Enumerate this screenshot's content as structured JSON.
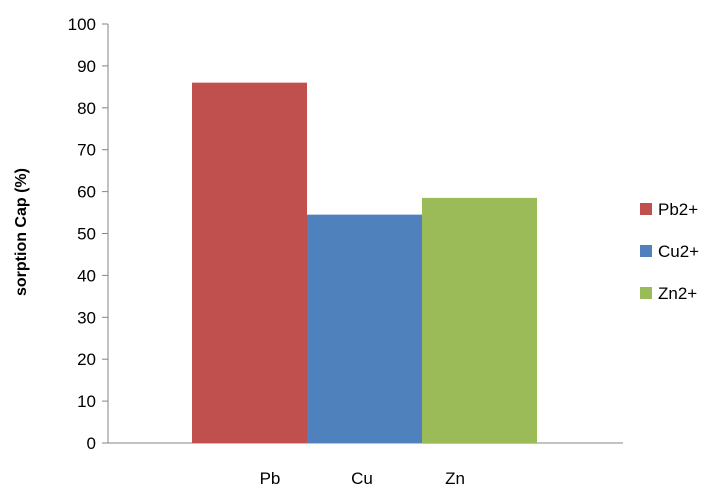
{
  "chart_data": {
    "type": "bar",
    "categories": [
      "Pb",
      "Cu",
      "Zn"
    ],
    "series": [
      {
        "name": "Pb2+",
        "color": "#c0504d",
        "category": "Pb",
        "value": 86
      },
      {
        "name": "Cu2+",
        "color": "#4f81bd",
        "category": "Cu",
        "value": 54.5
      },
      {
        "name": "Zn2+",
        "color": "#9bbb59",
        "category": "Zn",
        "value": 58.5
      }
    ],
    "ylabel": "sorption Cap (%)",
    "xlabel": "",
    "ylim": [
      0,
      100
    ],
    "yticks": [
      "0",
      "10",
      "20",
      "30",
      "40",
      "50",
      "60",
      "70",
      "80",
      "90",
      "100"
    ],
    "grid": false,
    "legend_position": "right"
  }
}
